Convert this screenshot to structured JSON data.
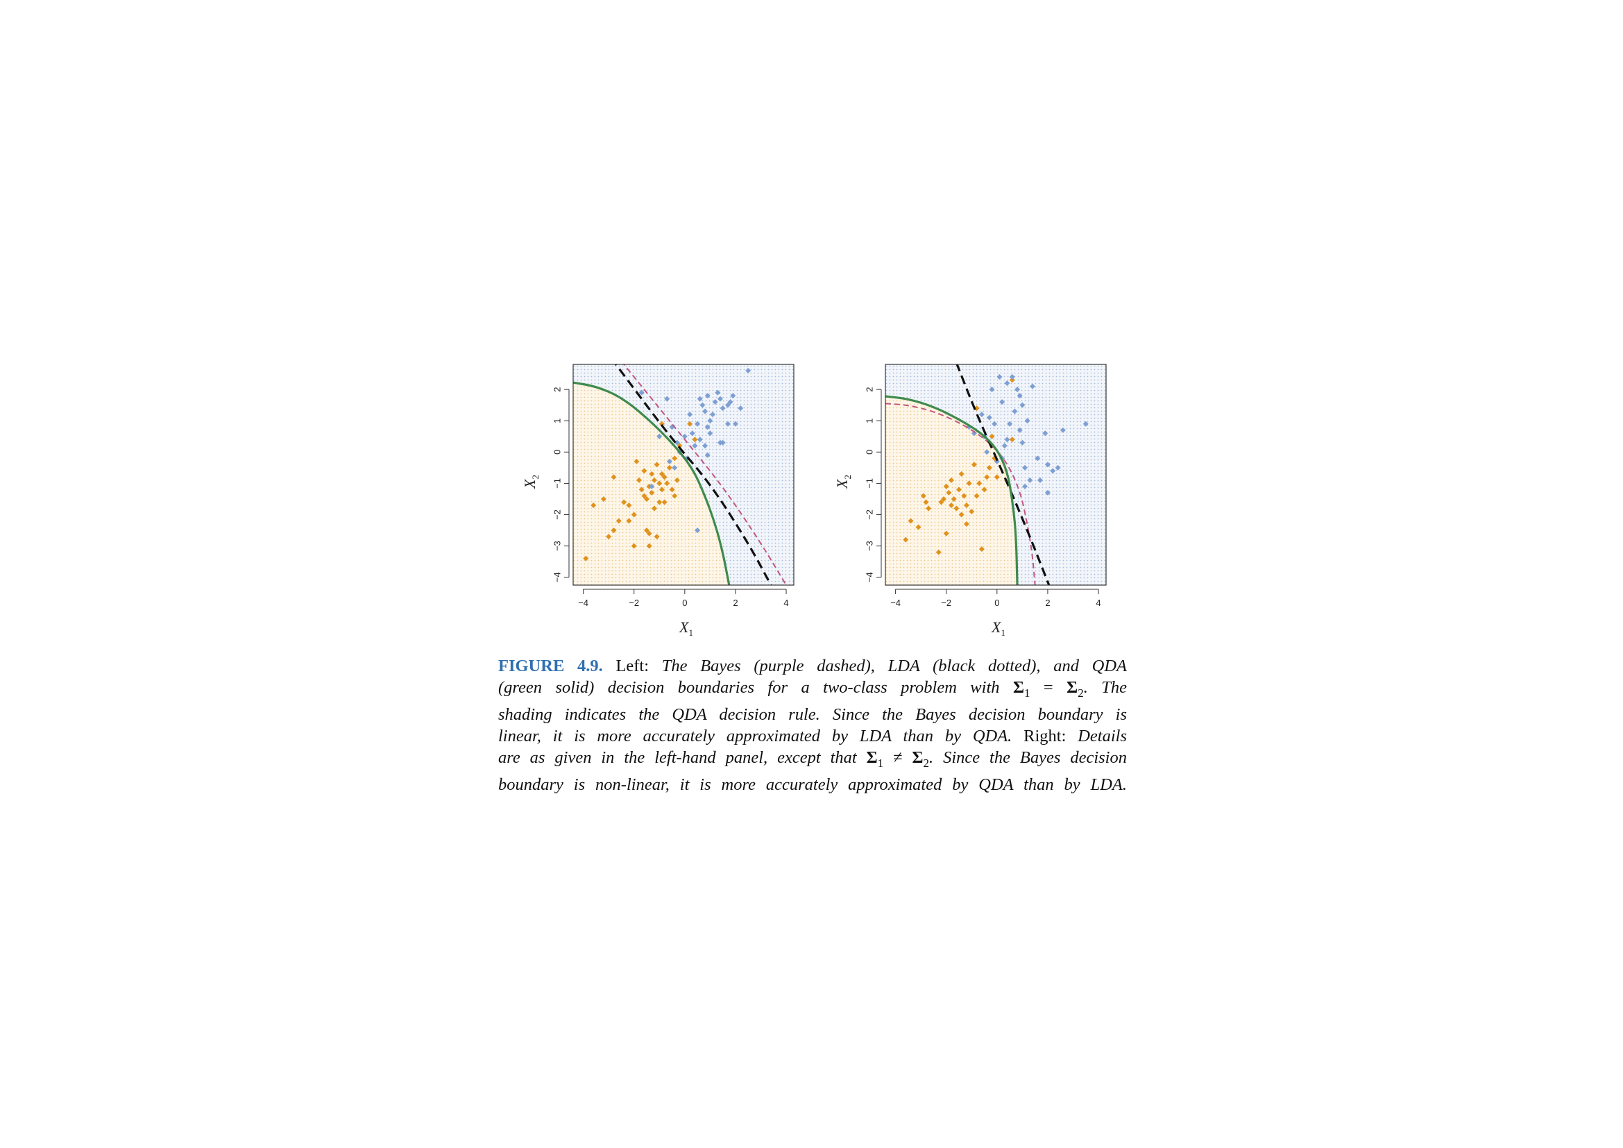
{
  "chart_data": [
    {
      "type": "scatter",
      "panel": "left",
      "xlabel": "X",
      "xlabel_sub": "1",
      "ylabel": "X",
      "ylabel_sub": "2",
      "xlim": [
        -4.4,
        4.3
      ],
      "ylim": [
        -4.25,
        2.8
      ],
      "xticks": [
        -4,
        -2,
        0,
        2,
        4
      ],
      "yticks": [
        -4,
        -3,
        -2,
        -1,
        0,
        1,
        2
      ],
      "xtick_labels": [
        "−4",
        "−2",
        "0",
        "2",
        "4"
      ],
      "ytick_labels": [
        "−4",
        "−3",
        "−2",
        "−1",
        "0",
        "1",
        "2"
      ],
      "shading": "QDA decision rule (orange / blue regions)",
      "colors": {
        "orange": "#e0921c",
        "blue": "#7d9fd3",
        "bayes": "#c2577e",
        "lda": "#111111",
        "qda": "#3f8a4c"
      },
      "series": [
        {
          "class": "orange",
          "points": [
            [
              -3.9,
              -3.4
            ],
            [
              -3.6,
              -1.7
            ],
            [
              -3.2,
              -1.5
            ],
            [
              -3.0,
              -2.7
            ],
            [
              -2.8,
              -2.5
            ],
            [
              -2.8,
              -0.8
            ],
            [
              -2.6,
              -2.2
            ],
            [
              -2.4,
              -1.6
            ],
            [
              -2.2,
              -1.7
            ],
            [
              -2.2,
              -2.2
            ],
            [
              -2.0,
              -3.0
            ],
            [
              -2.0,
              -2.0
            ],
            [
              -1.9,
              -0.3
            ],
            [
              -1.8,
              -0.9
            ],
            [
              -1.7,
              -1.2
            ],
            [
              -1.6,
              -0.6
            ],
            [
              -1.6,
              -1.4
            ],
            [
              -1.5,
              -1.5
            ],
            [
              -1.5,
              -2.5
            ],
            [
              -1.4,
              -3.0
            ],
            [
              -1.4,
              -1.1
            ],
            [
              -1.3,
              -0.7
            ],
            [
              -1.3,
              -1.3
            ],
            [
              -1.2,
              -0.9
            ],
            [
              -1.2,
              -1.8
            ],
            [
              -1.1,
              -2.7
            ],
            [
              -1.1,
              -0.4
            ],
            [
              -1.0,
              -1.0
            ],
            [
              -1.0,
              -1.6
            ],
            [
              -0.9,
              -0.7
            ],
            [
              -0.9,
              -1.2
            ],
            [
              -0.8,
              -1.6
            ],
            [
              -0.8,
              -0.8
            ],
            [
              -0.7,
              -1.0
            ],
            [
              -0.6,
              -0.5
            ],
            [
              -0.5,
              -1.2
            ],
            [
              -0.4,
              -0.2
            ],
            [
              -0.3,
              -0.9
            ],
            [
              -0.2,
              0.2
            ],
            [
              0.2,
              0.9
            ],
            [
              -0.9,
              0.9
            ],
            [
              0.4,
              0.4
            ],
            [
              -1.4,
              -2.6
            ],
            [
              -0.4,
              -1.4
            ]
          ]
        },
        {
          "class": "blue",
          "points": [
            [
              2.5,
              2.6
            ],
            [
              2.2,
              1.4
            ],
            [
              2.0,
              0.9
            ],
            [
              1.9,
              1.8
            ],
            [
              1.8,
              1.6
            ],
            [
              1.7,
              1.5
            ],
            [
              1.5,
              1.4
            ],
            [
              1.5,
              0.3
            ],
            [
              1.4,
              1.7
            ],
            [
              1.3,
              1.9
            ],
            [
              1.2,
              1.6
            ],
            [
              1.1,
              1.2
            ],
            [
              1.0,
              1.0
            ],
            [
              1.0,
              0.6
            ],
            [
              0.9,
              1.8
            ],
            [
              0.9,
              0.8
            ],
            [
              0.8,
              1.3
            ],
            [
              0.8,
              0.2
            ],
            [
              0.7,
              1.5
            ],
            [
              0.6,
              0.4
            ],
            [
              0.5,
              0.9
            ],
            [
              0.4,
              0.2
            ],
            [
              0.3,
              0.6
            ],
            [
              0.2,
              1.2
            ],
            [
              0.1,
              -0.2
            ],
            [
              0.0,
              0.5
            ],
            [
              -0.2,
              0.0
            ],
            [
              -0.3,
              0.3
            ],
            [
              -0.4,
              -0.5
            ],
            [
              -0.5,
              0.8
            ],
            [
              -0.6,
              -0.3
            ],
            [
              -0.7,
              1.7
            ],
            [
              -1.0,
              0.5
            ],
            [
              -1.3,
              -1.1
            ],
            [
              -1.7,
              1.9
            ],
            [
              0.5,
              -2.5
            ],
            [
              1.4,
              0.3
            ],
            [
              0.9,
              -0.1
            ],
            [
              1.7,
              0.9
            ],
            [
              0.6,
              1.7
            ]
          ]
        }
      ],
      "boundaries": {
        "bayes": [
          [
            -2.5,
            2.9
          ],
          [
            0.0,
            0.4
          ],
          [
            1.5,
            -1.1
          ],
          [
            3.0,
            -2.9
          ],
          [
            4.0,
            -4.25
          ]
        ],
        "lda": [
          [
            -2.9,
            3.0
          ],
          [
            -0.5,
            0.4
          ],
          [
            1.0,
            -1.0
          ],
          [
            2.5,
            -2.9
          ],
          [
            3.4,
            -4.25
          ]
        ],
        "qda": [
          [
            -4.4,
            2.22
          ],
          [
            -3.5,
            2.1
          ],
          [
            -2.5,
            1.75
          ],
          [
            -1.5,
            1.1
          ],
          [
            -0.5,
            0.3
          ],
          [
            0.3,
            -0.5
          ],
          [
            0.8,
            -1.4
          ],
          [
            1.2,
            -2.3
          ],
          [
            1.5,
            -3.2
          ],
          [
            1.75,
            -4.25
          ]
        ]
      }
    },
    {
      "type": "scatter",
      "panel": "right",
      "xlabel": "X",
      "xlabel_sub": "1",
      "ylabel": "X",
      "ylabel_sub": "2",
      "xlim": [
        -4.4,
        4.3
      ],
      "ylim": [
        -4.25,
        2.8
      ],
      "xticks": [
        -4,
        -2,
        0,
        2,
        4
      ],
      "yticks": [
        -4,
        -3,
        -2,
        -1,
        0,
        1,
        2
      ],
      "xtick_labels": [
        "−4",
        "−2",
        "0",
        "2",
        "4"
      ],
      "ytick_labels": [
        "−4",
        "−3",
        "−2",
        "−1",
        "0",
        "1",
        "2"
      ],
      "shading": "QDA decision rule (orange / blue regions)",
      "colors": {
        "orange": "#e0921c",
        "blue": "#7d9fd3",
        "bayes": "#c2577e",
        "lda": "#111111",
        "qda": "#3f8a4c"
      },
      "series": [
        {
          "class": "orange",
          "points": [
            [
              -3.6,
              -2.8
            ],
            [
              -3.4,
              -2.2
            ],
            [
              -3.1,
              -2.4
            ],
            [
              -2.9,
              -1.4
            ],
            [
              -2.8,
              -1.6
            ],
            [
              -2.7,
              -1.8
            ],
            [
              -2.3,
              -3.2
            ],
            [
              -2.2,
              -1.6
            ],
            [
              -2.1,
              -1.5
            ],
            [
              -2.0,
              -1.1
            ],
            [
              -1.9,
              -1.3
            ],
            [
              -1.8,
              -1.7
            ],
            [
              -1.8,
              -0.9
            ],
            [
              -1.7,
              -1.5
            ],
            [
              -1.6,
              -1.8
            ],
            [
              -1.5,
              -1.2
            ],
            [
              -1.4,
              -0.7
            ],
            [
              -1.4,
              -2.0
            ],
            [
              -1.3,
              -1.4
            ],
            [
              -1.2,
              -1.7
            ],
            [
              -1.2,
              -2.3
            ],
            [
              -1.1,
              -1.0
            ],
            [
              -1.0,
              -1.9
            ],
            [
              -0.9,
              -0.4
            ],
            [
              -0.8,
              -1.4
            ],
            [
              -0.7,
              -1.0
            ],
            [
              -0.6,
              -3.1
            ],
            [
              -0.5,
              -1.2
            ],
            [
              -0.4,
              -0.8
            ],
            [
              -0.3,
              -0.5
            ],
            [
              -0.2,
              0.5
            ],
            [
              -0.1,
              -0.2
            ],
            [
              0.0,
              -0.8
            ],
            [
              0.6,
              0.4
            ],
            [
              -0.8,
              1.4
            ],
            [
              0.6,
              2.3
            ],
            [
              -2.0,
              -2.6
            ]
          ]
        },
        {
          "class": "blue",
          "points": [
            [
              3.5,
              0.9
            ],
            [
              2.6,
              0.7
            ],
            [
              2.4,
              -0.5
            ],
            [
              2.2,
              -0.6
            ],
            [
              2.0,
              -0.4
            ],
            [
              2.0,
              -1.3
            ],
            [
              1.9,
              0.6
            ],
            [
              1.7,
              -0.9
            ],
            [
              1.6,
              -0.2
            ],
            [
              1.4,
              2.1
            ],
            [
              1.2,
              1.0
            ],
            [
              1.1,
              -0.5
            ],
            [
              1.0,
              1.5
            ],
            [
              1.0,
              0.3
            ],
            [
              0.9,
              1.8
            ],
            [
              0.9,
              0.7
            ],
            [
              0.8,
              2.0
            ],
            [
              0.7,
              1.3
            ],
            [
              0.6,
              2.4
            ],
            [
              0.5,
              0.9
            ],
            [
              0.4,
              2.2
            ],
            [
              0.3,
              0.2
            ],
            [
              0.2,
              1.6
            ],
            [
              0.1,
              2.4
            ],
            [
              0.0,
              -0.3
            ],
            [
              -0.1,
              0.9
            ],
            [
              -0.2,
              2.0
            ],
            [
              -0.3,
              1.1
            ],
            [
              -0.4,
              0.0
            ],
            [
              -0.5,
              0.5
            ],
            [
              -0.6,
              1.2
            ],
            [
              -0.9,
              0.6
            ],
            [
              -1.1,
              0.8
            ],
            [
              1.1,
              -1.1
            ],
            [
              1.3,
              -0.9
            ],
            [
              0.4,
              0.4
            ],
            [
              0.2,
              -0.2
            ]
          ]
        }
      ],
      "boundaries": {
        "bayes": [
          [
            -4.4,
            1.55
          ],
          [
            -3.5,
            1.5
          ],
          [
            -2.5,
            1.3
          ],
          [
            -1.5,
            0.95
          ],
          [
            -0.5,
            0.45
          ],
          [
            0.3,
            -0.2
          ],
          [
            0.9,
            -1.2
          ],
          [
            1.2,
            -2.3
          ],
          [
            1.4,
            -3.3
          ],
          [
            1.5,
            -4.25
          ]
        ],
        "lda": [
          [
            -1.6,
            2.85
          ],
          [
            -0.8,
            1.2
          ],
          [
            0.2,
            -0.6
          ],
          [
            1.2,
            -2.5
          ],
          [
            2.05,
            -4.25
          ]
        ],
        "qda": [
          [
            -4.4,
            1.78
          ],
          [
            -3.5,
            1.7
          ],
          [
            -2.5,
            1.45
          ],
          [
            -1.5,
            1.05
          ],
          [
            -0.6,
            0.6
          ],
          [
            0.0,
            0.1
          ],
          [
            0.4,
            -0.6
          ],
          [
            0.6,
            -1.5
          ],
          [
            0.75,
            -2.6
          ],
          [
            0.8,
            -4.25
          ]
        ]
      }
    }
  ],
  "caption": {
    "label": "FIGURE 4.9.",
    "lines": [
      [
        {
          "t": "Left: ",
          "s": "rm"
        },
        {
          "t": "The Bayes (purple dashed), LDA (black dotted), and QDA",
          "s": "it"
        }
      ],
      [
        {
          "t": "(green solid) decision boundaries for a two-class problem with ",
          "s": "it"
        },
        {
          "t": "Σ",
          "s": "bold"
        },
        {
          "t": "1",
          "s": "sub"
        },
        {
          "t": " = ",
          "s": "rm"
        },
        {
          "t": "Σ",
          "s": "bold"
        },
        {
          "t": "2",
          "s": "sub"
        },
        {
          "t": ". The",
          "s": "it"
        }
      ],
      [
        {
          "t": "shading indicates the QDA decision rule. Since the Bayes decision boundary is",
          "s": "it"
        }
      ],
      [
        {
          "t": "linear, it is more accurately approximated by LDA than by QDA.",
          "s": "it"
        },
        {
          "t": " Right: ",
          "s": "rm"
        },
        {
          "t": "Details",
          "s": "it"
        }
      ],
      [
        {
          "t": "are as given in the left-hand panel, except that ",
          "s": "it"
        },
        {
          "t": "Σ",
          "s": "bold"
        },
        {
          "t": "1",
          "s": "sub"
        },
        {
          "t": " ≠ ",
          "s": "rm"
        },
        {
          "t": "Σ",
          "s": "bold"
        },
        {
          "t": "2",
          "s": "sub"
        },
        {
          "t": ". Since the Bayes decision",
          "s": "it"
        }
      ],
      [
        {
          "t": "boundary is non-linear, it is more accurately approximated by QDA than by LDA.",
          "s": "it"
        }
      ]
    ]
  }
}
